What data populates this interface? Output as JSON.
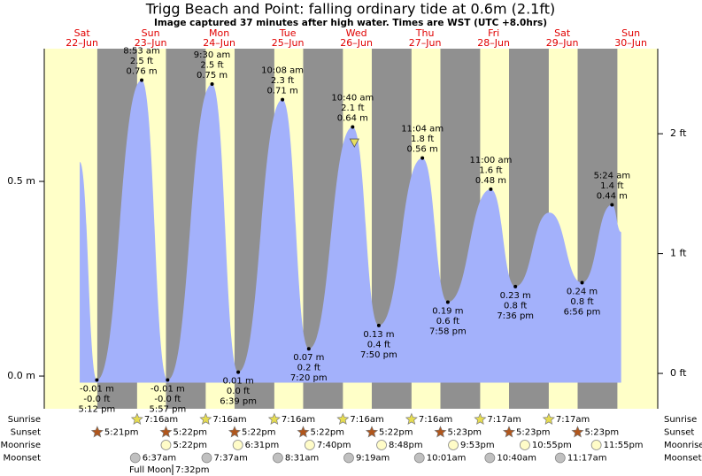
{
  "chart_data": {
    "type": "tide",
    "title": "Trigg Beach and Point: falling  ordinary tide at 0.6m (2.1ft)",
    "subtitle": "Image captured 37 minutes after high water. Times are WST (UTC +8.0hrs)",
    "xlim": [
      -1.2,
      213.4
    ],
    "ylim": [
      -0.084,
      0.841
    ],
    "yticks": [
      {
        "value": 0,
        "label": "0.0 m"
      },
      {
        "value": 0.5,
        "label": "0.5 m"
      }
    ],
    "y2lim": [
      -0.295,
      2.71
    ],
    "y2ticks": [
      {
        "value": 0,
        "label": "0 ft"
      },
      {
        "value": 1,
        "label": "1 ft"
      },
      {
        "value": 2,
        "label": "2 ft"
      }
    ],
    "days": [
      {
        "x": 12,
        "name": "Sat",
        "date": "22–Jun"
      },
      {
        "x": 36,
        "name": "Sun",
        "date": "23–Jun"
      },
      {
        "x": 60,
        "name": "Mon",
        "date": "24–Jun"
      },
      {
        "x": 84,
        "name": "Tue",
        "date": "25–Jun"
      },
      {
        "x": 108,
        "name": "Wed",
        "date": "26–Jun"
      },
      {
        "x": 132,
        "name": "Thu",
        "date": "27–Jun"
      },
      {
        "x": 156,
        "name": "Fri",
        "date": "28–Jun"
      },
      {
        "x": 180,
        "name": "Sat",
        "date": "29–Jun"
      },
      {
        "x": 204,
        "name": "Sun",
        "date": "30–Jun"
      }
    ],
    "series": [
      {
        "color": "#a3b1fb",
        "x": [
          11.2,
          17.2,
          32.88,
          41.95,
          57.5,
          66.65,
          82.13,
          91.33,
          106.67,
          115.83,
          131.07,
          139.97,
          155.0,
          163.6,
          175.5,
          186.93,
          197.4,
          200.6
        ],
        "values": [
          0.55,
          -0.01,
          0.76,
          -0.01,
          0.75,
          0.01,
          0.71,
          0.07,
          0.64,
          0.13,
          0.56,
          0.19,
          0.48,
          0.23,
          0.42,
          0.24,
          0.44,
          0.37
        ],
        "labels": [
          null,
          [
            "-0.01 m",
            "-0.0 ft",
            "5:12 pm"
          ],
          [
            "8:53 am",
            "2.5 ft",
            "0.76 m"
          ],
          [
            "-0.01 m",
            "-0.0 ft",
            "5:57 pm"
          ],
          [
            "9:30 am",
            "2.5 ft",
            "0.75 m"
          ],
          [
            "0.01 m",
            "0.0 ft",
            "6:39 pm"
          ],
          [
            "10:08 am",
            "2.3 ft",
            "0.71 m"
          ],
          [
            "0.07 m",
            "0.2 ft",
            "7:20 pm"
          ],
          [
            "10:40 am",
            "2.1 ft",
            "0.64 m"
          ],
          [
            "0.13 m",
            "0.4 ft",
            "7:50 pm"
          ],
          [
            "11:04 am",
            "1.8 ft",
            "0.56 m"
          ],
          [
            "0.19 m",
            "0.6 ft",
            "7:58 pm"
          ],
          [
            "11:00 am",
            "1.6 ft",
            "0.48 m"
          ],
          [
            "0.23 m",
            "0.8 ft",
            "7:36 pm"
          ],
          null,
          [
            "0.24 m",
            "0.8 ft",
            "6:56 pm"
          ],
          [
            "5:24 am",
            "1.4 ft",
            "0.44 m"
          ],
          null
        ]
      }
    ],
    "now": {
      "x": 107.28,
      "value": 0.6,
      "color": "#e8e060"
    },
    "night_color": "#909090",
    "day_color": "#ffffc8",
    "rows": [
      {
        "name": "Sunrise",
        "icon": "star",
        "color": "#e6dc50",
        "x": [
          31.27,
          55.27,
          79.27,
          103.27,
          127.27,
          151.28,
          175.28,
          199.28
        ],
        "labels": [
          "7:16am",
          "7:16am",
          "7:16am",
          "7:16am",
          "7:16am",
          "7:17am",
          "7:17am",
          null
        ]
      },
      {
        "name": "Sunset",
        "icon": "star",
        "color": "#b0561c",
        "x": [
          17.35,
          41.37,
          65.37,
          89.37,
          113.37,
          137.38,
          161.38,
          185.38
        ],
        "labels": [
          "5:21pm",
          "5:22pm",
          "5:22pm",
          "5:22pm",
          "5:22pm",
          "5:23pm",
          "5:23pm",
          "5:23pm"
        ]
      },
      {
        "name": "Moonrise",
        "icon": "circle",
        "color": "#fffcc8",
        "x": [
          41.37,
          66.52,
          91.67,
          116.8,
          141.88,
          166.92,
          191.92
        ],
        "labels": [
          "5:22pm",
          "6:31pm",
          "7:40pm",
          "8:48pm",
          "9:53pm",
          "10:55pm",
          "11:55pm"
        ]
      },
      {
        "name": "Moonset",
        "icon": "circle",
        "color": "#c0c0c0",
        "x": [
          30.62,
          55.62,
          80.52,
          105.32,
          130.02,
          154.67,
          179.28
        ],
        "labels": [
          "6:37am",
          "7:37am",
          "8:31am",
          "9:19am",
          "10:01am",
          "10:40am",
          "11:17am"
        ]
      }
    ],
    "moon_phase": {
      "name": "Full Moon",
      "time": "7:32pm"
    }
  }
}
